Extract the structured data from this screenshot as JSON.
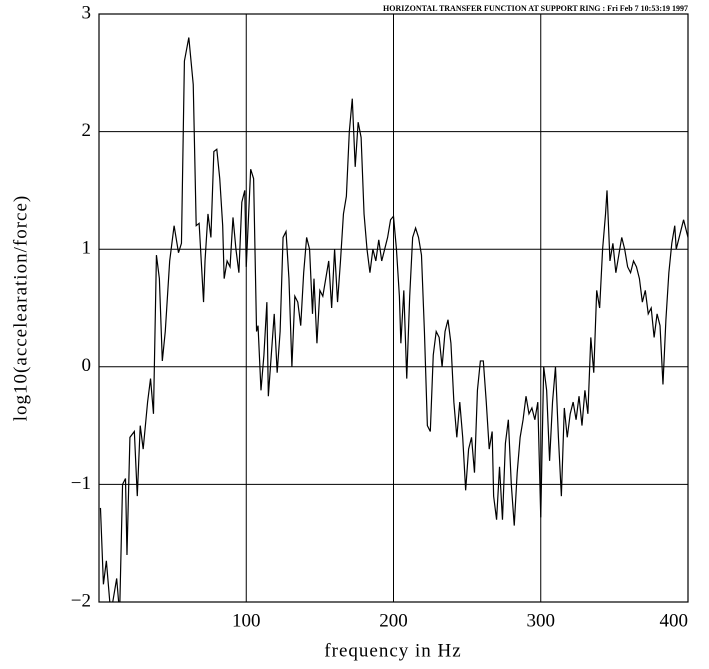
{
  "chart_data": {
    "type": "line",
    "title": "HORIZONTAL TRANSFER FUNCTION AT SUPPORT RING : Fri Feb  7 10:53:19 1997",
    "x_label": "frequency in Hz",
    "y_label": "log10(accelearation/force)",
    "xlim": [
      0,
      400
    ],
    "ylim": [
      -2,
      3
    ],
    "xticks": [
      100,
      200,
      300,
      400
    ],
    "yticks": [
      {
        "value": -2,
        "label": "−2"
      },
      {
        "value": -1,
        "label": "−1"
      },
      0,
      1,
      2,
      3
    ],
    "grid": true,
    "color": "#000000",
    "x": [
      1,
      3,
      5,
      8,
      12,
      14,
      16,
      18,
      19,
      21,
      24,
      26,
      28,
      30,
      33,
      35,
      37,
      39,
      41,
      43,
      45,
      48,
      51,
      54,
      56,
      58,
      61,
      64,
      66,
      68,
      71,
      72,
      74,
      76,
      78,
      80,
      82,
      84,
      85,
      87,
      89,
      91,
      93,
      95,
      97,
      99,
      100,
      103,
      105,
      107,
      108,
      110,
      112,
      114,
      115,
      117,
      119,
      121,
      123,
      125,
      127,
      129,
      131,
      133,
      135,
      137,
      139,
      141,
      143,
      145,
      146,
      148,
      150,
      152,
      154,
      156,
      158,
      160,
      162,
      164,
      166,
      168,
      170,
      172,
      174,
      176,
      178,
      180,
      182,
      184,
      186,
      188,
      190,
      192,
      194,
      196,
      198,
      200,
      202,
      204,
      205,
      207,
      209,
      211,
      213,
      215,
      217,
      219,
      221,
      223,
      225,
      227,
      229,
      231,
      233,
      235,
      237,
      239,
      241,
      243,
      245,
      247,
      249,
      251,
      253,
      255,
      257,
      259,
      261,
      263,
      265,
      267,
      268,
      270,
      272,
      274,
      276,
      278,
      280,
      282,
      284,
      286,
      288,
      290,
      292,
      294,
      296,
      298,
      300,
      302,
      304,
      306,
      308,
      310,
      312,
      314,
      316,
      318,
      320,
      322,
      324,
      326,
      328,
      330,
      332,
      334,
      336,
      338,
      340,
      342,
      344,
      345,
      347,
      349,
      351,
      353,
      355,
      357,
      359,
      361,
      363,
      365,
      367,
      369,
      371,
      373,
      375,
      377,
      379,
      381,
      383,
      385,
      387,
      389,
      391,
      392,
      394,
      397,
      400
    ],
    "values": [
      -1.2,
      -1.85,
      -1.65,
      -2.1,
      -1.8,
      -2.1,
      -1.0,
      -0.95,
      -1.6,
      -0.6,
      -0.55,
      -1.1,
      -0.5,
      -0.7,
      -0.3,
      -0.1,
      -0.4,
      0.95,
      0.75,
      0.05,
      0.3,
      0.9,
      1.2,
      0.97,
      1.05,
      2.6,
      2.8,
      2.4,
      1.2,
      1.22,
      0.55,
      0.9,
      1.3,
      1.1,
      1.83,
      1.85,
      1.6,
      1.2,
      0.75,
      0.9,
      0.85,
      1.27,
      1.0,
      0.8,
      1.4,
      1.5,
      0.85,
      1.68,
      1.6,
      0.3,
      0.35,
      -0.2,
      0.1,
      0.55,
      -0.25,
      0.1,
      0.45,
      -0.05,
      0.3,
      1.1,
      1.15,
      0.75,
      0.0,
      0.6,
      0.55,
      0.35,
      0.8,
      1.1,
      1.0,
      0.45,
      0.75,
      0.2,
      0.65,
      0.6,
      0.75,
      0.9,
      0.5,
      1.0,
      0.55,
      0.9,
      1.3,
      1.45,
      2.0,
      2.28,
      1.7,
      2.08,
      1.95,
      1.3,
      1.0,
      0.8,
      1.0,
      0.9,
      1.08,
      0.9,
      1.0,
      1.1,
      1.25,
      1.28,
      1.0,
      0.6,
      0.2,
      0.65,
      -0.1,
      0.6,
      1.1,
      1.18,
      1.1,
      0.95,
      0.3,
      -0.5,
      -0.55,
      0.1,
      0.3,
      0.25,
      0.0,
      0.3,
      0.4,
      0.2,
      -0.3,
      -0.6,
      -0.3,
      -0.6,
      -1.05,
      -0.7,
      -0.6,
      -0.9,
      -0.2,
      0.05,
      0.05,
      -0.3,
      -0.7,
      -0.55,
      -1.1,
      -1.3,
      -0.85,
      -1.3,
      -0.65,
      -0.45,
      -1.0,
      -1.35,
      -0.9,
      -0.6,
      -0.45,
      -0.25,
      -0.4,
      -0.35,
      -0.45,
      -0.3,
      -1.28,
      0.0,
      -0.2,
      -0.8,
      -0.3,
      0.0,
      -0.6,
      -1.1,
      -0.35,
      -0.6,
      -0.4,
      -0.3,
      -0.45,
      -0.25,
      -0.5,
      -0.2,
      -0.4,
      0.25,
      -0.05,
      0.65,
      0.5,
      1.0,
      1.3,
      1.5,
      0.9,
      1.05,
      0.8,
      0.95,
      1.1,
      1.0,
      0.85,
      0.8,
      0.9,
      0.85,
      0.75,
      0.55,
      0.65,
      0.45,
      0.5,
      0.25,
      0.45,
      0.35,
      -0.15,
      0.4,
      0.8,
      1.05,
      1.2,
      1.0,
      1.1,
      1.25,
      1.1
    ]
  }
}
